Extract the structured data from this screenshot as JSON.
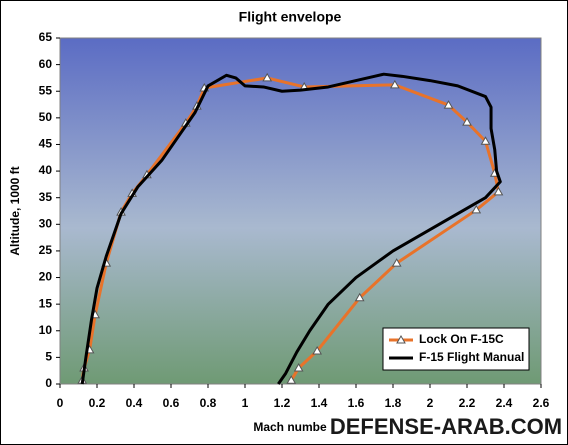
{
  "chart_data": {
    "type": "line",
    "title": "Flight envelope",
    "x_label": "Mach numbe",
    "y_label": "Altitude, 1000 ft",
    "watermark": "DEFENSE-ARAB.COM",
    "xlim": [
      0,
      2.6
    ],
    "xticks": [
      0,
      0.2,
      0.4,
      0.6,
      0.8,
      1,
      1.2,
      1.4,
      1.6,
      1.8,
      2,
      2.2,
      2.4,
      2.6
    ],
    "ylim": [
      0,
      65
    ],
    "yticks": [
      0,
      5,
      10,
      15,
      20,
      25,
      30,
      35,
      40,
      45,
      50,
      55,
      60,
      65
    ],
    "grid": false,
    "legend": "lower right",
    "series": [
      {
        "name": "Lock On F-15C",
        "color": "#e8732a",
        "marker": "triangle",
        "x": [
          0.12,
          0.13,
          0.16,
          0.19,
          0.25,
          0.33,
          0.39,
          0.47,
          0.68,
          0.74,
          0.78,
          1.12,
          1.32,
          1.81,
          2.1,
          2.2,
          2.3,
          2.35,
          2.37,
          2.25,
          1.82,
          1.62,
          1.39,
          1.29,
          1.25
        ],
        "values": [
          0.7,
          3,
          6.4,
          13,
          22.7,
          32.3,
          35.8,
          39.3,
          49,
          52.2,
          55.6,
          57.5,
          55.8,
          56.2,
          52.4,
          49.2,
          45.6,
          39.6,
          36.1,
          32.7,
          22.7,
          16.2,
          6.2,
          3,
          0.7
        ]
      },
      {
        "name": "F-15 Flight Manual",
        "color": "#000000",
        "marker": "none",
        "x": [
          0.12,
          0.14,
          0.17,
          0.2,
          0.25,
          0.33,
          0.42,
          0.55,
          0.65,
          0.73,
          0.8,
          0.9,
          0.95,
          1.0,
          1.1,
          1.2,
          1.3,
          1.45,
          1.6,
          1.7,
          1.75,
          1.85,
          2.0,
          2.15,
          2.3,
          2.33,
          2.33,
          2.35,
          2.36,
          2.38,
          2.3,
          2.1,
          1.95,
          1.8,
          1.6,
          1.45,
          1.35,
          1.28,
          1.22,
          1.18
        ],
        "values": [
          0,
          5,
          12,
          18,
          24,
          32,
          37,
          42,
          47,
          51,
          56,
          58,
          57.5,
          56,
          55.8,
          55,
          55.2,
          55.8,
          57,
          57.8,
          58.2,
          57.8,
          57,
          56,
          54,
          52,
          48,
          44,
          40,
          38,
          35,
          31,
          28,
          25,
          20,
          15,
          10,
          6,
          2,
          0
        ]
      }
    ]
  }
}
